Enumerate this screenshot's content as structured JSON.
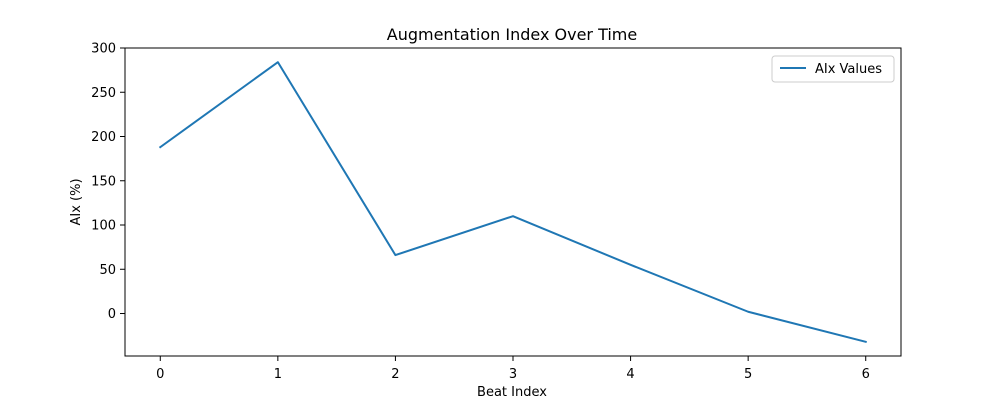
{
  "chart_data": {
    "type": "line",
    "title": "Augmentation Index Over Time",
    "xlabel": "Beat Index",
    "ylabel": "AIx (%)",
    "x": [
      0,
      1,
      2,
      3,
      4,
      5,
      6
    ],
    "xticks": [
      "0",
      "1",
      "2",
      "3",
      "4",
      "5",
      "6"
    ],
    "yticks": [
      "0",
      "50",
      "100",
      "150",
      "200",
      "250",
      "300"
    ],
    "xlim": [
      -0.3,
      6.3
    ],
    "ylim": [
      -48,
      300
    ],
    "grid": false,
    "legend_position": "upper-right",
    "series": [
      {
        "name": "AIx Values",
        "color": "#1f77b4",
        "values": [
          188,
          284,
          66,
          110,
          55,
          2,
          -32
        ]
      }
    ]
  }
}
